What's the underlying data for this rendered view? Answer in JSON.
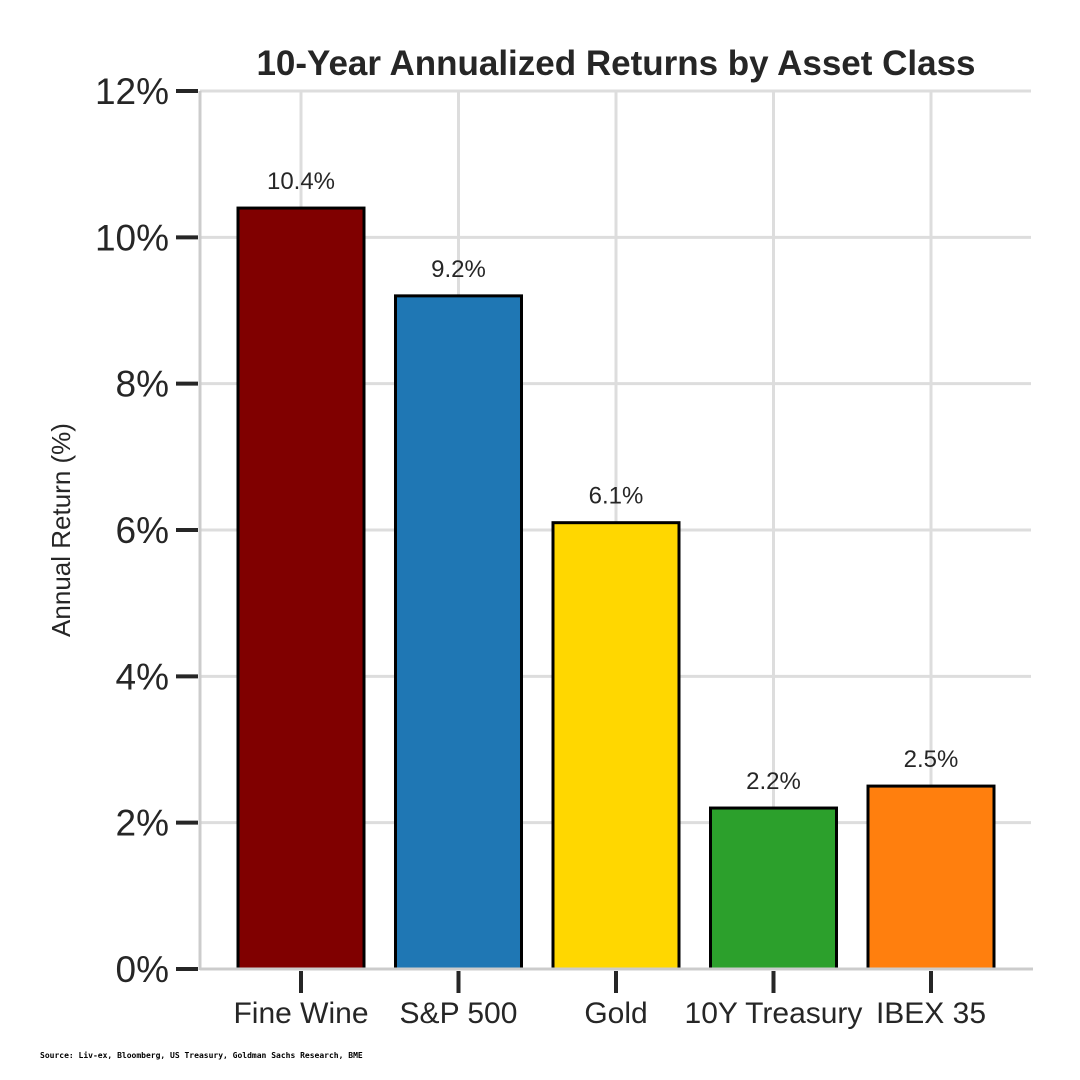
{
  "chart_data": {
    "type": "bar",
    "title": "10-Year Annualized Returns by Asset Class",
    "xlabel": "",
    "ylabel": "Annual Return (%)",
    "categories": [
      "Fine Wine",
      "S&P 500",
      "Gold",
      "10Y Treasury",
      "IBEX 35"
    ],
    "values": [
      10.4,
      9.2,
      6.1,
      2.2,
      2.5
    ],
    "value_labels": [
      "10.4%",
      "9.2%",
      "6.1%",
      "2.2%",
      "2.5%"
    ],
    "colors": [
      "#800000",
      "#1f77b4",
      "#ffd700",
      "#2ca02c",
      "#ff7f0e"
    ],
    "ylim": [
      0,
      12
    ],
    "yticks": [
      0,
      2,
      4,
      6,
      8,
      10,
      12
    ],
    "ytick_labels": [
      "0%",
      "2%",
      "4%",
      "6%",
      "8%",
      "10%",
      "12%"
    ],
    "grid": true,
    "source": "Source: Liv-ex, Bloomberg, US Treasury, Goldman Sachs Research, BME"
  }
}
